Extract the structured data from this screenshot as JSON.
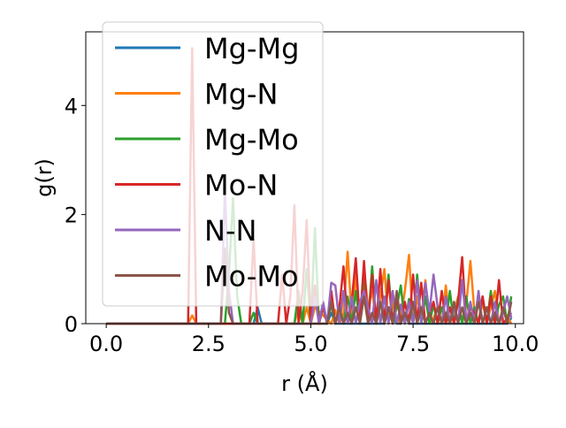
{
  "chart_data": {
    "type": "line",
    "xlabel": "r (Å)",
    "ylabel": "g(r)",
    "xlim": [
      -0.5,
      10.2
    ],
    "ylim": [
      0,
      5.35
    ],
    "x_ticks": [
      {
        "value": 0.0,
        "label": "0.0"
      },
      {
        "value": 2.5,
        "label": "2.5"
      },
      {
        "value": 5.0,
        "label": "5.0"
      },
      {
        "value": 7.5,
        "label": "7.5"
      },
      {
        "value": 10.0,
        "label": "10.0"
      }
    ],
    "y_ticks": [
      {
        "value": 0,
        "label": "0"
      },
      {
        "value": 2,
        "label": "2"
      },
      {
        "value": 4,
        "label": "4"
      }
    ],
    "grid": false,
    "legend": {
      "placement": "top-left",
      "background": "semi-transparent white"
    },
    "series": [
      {
        "name": "Mg-Mg",
        "color": "#1f77b4",
        "x": [
          0,
          3.6,
          3.7,
          3.8,
          3.9,
          5.4,
          5.5,
          5.6,
          5.7,
          6.8,
          6.9,
          7.0,
          7.1,
          7.2,
          7.3,
          7.4,
          7.5,
          9.8,
          9.9
        ],
        "y": [
          0,
          0,
          0.3,
          0,
          0,
          0,
          0.2,
          0,
          0,
          0,
          0.3,
          0.1,
          0,
          0,
          0.2,
          0,
          0,
          0,
          0.1
        ]
      },
      {
        "name": "Mg-N",
        "color": "#ff7f0e",
        "x": [
          0,
          2.0,
          2.1,
          2.2,
          2.3,
          4.6,
          4.7,
          4.8,
          4.9,
          5.0,
          5.1,
          5.5,
          5.6,
          5.7,
          5.8,
          5.9,
          6.0,
          6.1,
          6.2,
          6.3,
          6.4,
          6.5,
          6.6,
          6.7,
          6.8,
          6.9,
          7.0,
          7.1,
          7.2,
          7.3,
          7.4,
          7.5,
          7.6,
          7.7,
          7.8,
          7.9,
          8.0,
          8.1,
          8.2,
          8.3,
          8.4,
          8.5,
          8.6,
          8.7,
          8.8,
          8.9,
          9.0,
          9.1,
          9.2,
          9.3,
          9.4,
          9.5,
          9.6,
          9.7,
          9.8,
          9.9
        ],
        "y": [
          0,
          0,
          0.15,
          0,
          0,
          0,
          0.3,
          0,
          0.3,
          0,
          0.3,
          0,
          0.25,
          0,
          0.2,
          1.32,
          0.1,
          0.9,
          0,
          1.0,
          0.3,
          0.6,
          0,
          0.5,
          1.0,
          0,
          0.4,
          0,
          0.1,
          0.6,
          1.26,
          0,
          0.5,
          0.1,
          0.8,
          0,
          0.1,
          0.3,
          0,
          0.7,
          0,
          0.2,
          0.5,
          0,
          0.35,
          1.15,
          0.2,
          0,
          0.4,
          0,
          0.3,
          0.6,
          0,
          0.2,
          0.15,
          0
        ]
      },
      {
        "name": "Mg-Mo",
        "color": "#2ca02c",
        "x": [
          0,
          2.9,
          3.0,
          3.1,
          3.2,
          3.3,
          3.5,
          3.6,
          3.7,
          4.6,
          4.7,
          4.8,
          4.9,
          5.0,
          5.1,
          5.2,
          5.3,
          5.4,
          5.5,
          5.6,
          5.7,
          5.8,
          5.9,
          6.0,
          6.1,
          6.2,
          6.3,
          6.4,
          6.5,
          6.6,
          6.7,
          6.8,
          6.9,
          7.0,
          7.1,
          7.2,
          7.3,
          7.4,
          7.5,
          7.6,
          7.7,
          7.8,
          7.9,
          8.0,
          8.1,
          8.2,
          8.3,
          8.4,
          8.5,
          8.6,
          8.7,
          8.8,
          8.9,
          9.0,
          9.1,
          9.2,
          9.3,
          9.4,
          9.5,
          9.6,
          9.7,
          9.8,
          9.9
        ],
        "y": [
          0,
          0,
          0.9,
          2.3,
          0.5,
          0,
          0,
          0.2,
          0,
          0,
          0.6,
          0,
          1.0,
          0,
          1.75,
          0,
          0.3,
          0,
          0.35,
          0,
          0.3,
          0,
          0.5,
          0,
          0.6,
          0,
          0.8,
          0,
          1.05,
          0,
          0.4,
          0,
          0.9,
          0,
          0.3,
          0.7,
          0,
          0.45,
          0,
          0.9,
          0,
          0.5,
          0,
          0.35,
          0,
          0.3,
          0,
          0.6,
          0,
          0.45,
          0,
          0.5,
          0,
          0.3,
          0,
          0.5,
          0,
          0.6,
          0,
          0.35,
          0.5,
          0,
          0.5
        ]
      },
      {
        "name": "Mo-N",
        "color": "#d62728",
        "x": [
          0,
          2.0,
          2.1,
          2.2,
          2.3,
          3.5,
          3.6,
          3.7,
          3.8,
          4.2,
          4.3,
          4.4,
          4.5,
          4.6,
          4.7,
          4.8,
          4.9,
          5.0,
          5.1,
          5.2,
          5.3,
          5.4,
          5.5,
          5.6,
          5.7,
          5.8,
          5.9,
          6.0,
          6.1,
          6.2,
          6.3,
          6.4,
          6.5,
          6.6,
          6.7,
          6.8,
          6.9,
          7.0,
          7.1,
          7.2,
          7.3,
          7.4,
          7.5,
          7.6,
          7.7,
          7.8,
          7.9,
          8.0,
          8.1,
          8.2,
          8.3,
          8.4,
          8.5,
          8.6,
          8.7,
          8.8,
          8.9,
          9.0,
          9.1,
          9.2,
          9.3,
          9.4,
          9.5,
          9.6,
          9.7,
          9.8,
          9.9
        ],
        "y": [
          0,
          0,
          5.05,
          0,
          0,
          0,
          1.55,
          0,
          0,
          0,
          0.9,
          0,
          0.5,
          2.17,
          0,
          0.6,
          1.9,
          0,
          0.7,
          0,
          0.3,
          0,
          0.6,
          0,
          0.3,
          1.05,
          0,
          0.4,
          1.2,
          0,
          1.15,
          0,
          0.9,
          0,
          1.0,
          0,
          0.8,
          0,
          0.5,
          0,
          0.4,
          0,
          0.9,
          0,
          0.75,
          0,
          0.2,
          0.4,
          0,
          0.6,
          0,
          0.3,
          0,
          0.4,
          1.22,
          0,
          0.3,
          0.2,
          0,
          0.5,
          0,
          0.5,
          0,
          0.8,
          0,
          0.1,
          0.2
        ]
      },
      {
        "name": "N-N",
        "color": "#9467bd",
        "x": [
          0,
          2.8,
          2.9,
          3.0,
          3.1,
          5.0,
          5.1,
          5.2,
          5.3,
          5.4,
          5.5,
          5.6,
          5.7,
          5.8,
          5.9,
          6.0,
          6.1,
          6.2,
          6.3,
          6.4,
          6.5,
          6.6,
          6.7,
          6.8,
          6.9,
          7.0,
          7.1,
          7.2,
          7.3,
          7.4,
          7.5,
          7.6,
          7.7,
          7.8,
          7.9,
          8.0,
          8.1,
          8.2,
          8.3,
          8.4,
          8.5,
          8.6,
          8.7,
          8.8,
          8.9,
          9.0,
          9.1,
          9.2,
          9.3,
          9.4,
          9.5,
          9.6,
          9.7,
          9.8,
          9.9
        ],
        "y": [
          0,
          0,
          2.45,
          0.6,
          0,
          0,
          0.5,
          0,
          0.4,
          0,
          0.75,
          0.7,
          0,
          0.6,
          0,
          0.5,
          0,
          0.4,
          0.6,
          0.3,
          0,
          0.8,
          0,
          0.5,
          0,
          0.6,
          0,
          0.35,
          0,
          0.4,
          0,
          0.8,
          0,
          0.75,
          0.2,
          0.9,
          0.3,
          0,
          0.5,
          0,
          0.3,
          0,
          0.8,
          0,
          0.4,
          0,
          0.6,
          0,
          0.3,
          0,
          0.4,
          0,
          0.2,
          0.5,
          0.1
        ]
      },
      {
        "name": "Mo-Mo",
        "color": "#8c564b",
        "x": [
          0,
          2.8,
          2.9,
          3.0,
          3.1,
          5.4,
          5.5,
          5.6,
          5.7,
          5.8,
          5.9,
          6.0,
          6.1,
          6.2,
          6.3,
          6.4,
          6.5,
          6.6,
          6.7,
          6.8,
          6.9,
          7.0,
          7.1,
          7.2,
          7.3,
          7.4,
          7.5,
          7.6,
          7.7,
          7.8,
          7.9,
          8.0,
          8.1,
          8.2,
          8.3,
          8.4,
          8.5,
          8.6,
          8.7,
          8.8,
          8.9,
          9.0,
          9.1,
          9.2,
          9.3,
          9.4,
          9.5,
          9.6,
          9.7,
          9.8,
          9.9
        ],
        "y": [
          0,
          0,
          1.38,
          0.2,
          0,
          0,
          0.4,
          0,
          0.3,
          0,
          0.2,
          0,
          0.3,
          0,
          0.5,
          0,
          0.2,
          0,
          0.4,
          0,
          0.3,
          0,
          0.6,
          0,
          0.2,
          0,
          0.4,
          0,
          0.3,
          0,
          0.2,
          0,
          0.3,
          0,
          0.2,
          0,
          0.4,
          0,
          0.3,
          0,
          0.2,
          0,
          0.4,
          0,
          0.3,
          0,
          0.2,
          0,
          0.3,
          0,
          0.4
        ]
      }
    ]
  }
}
